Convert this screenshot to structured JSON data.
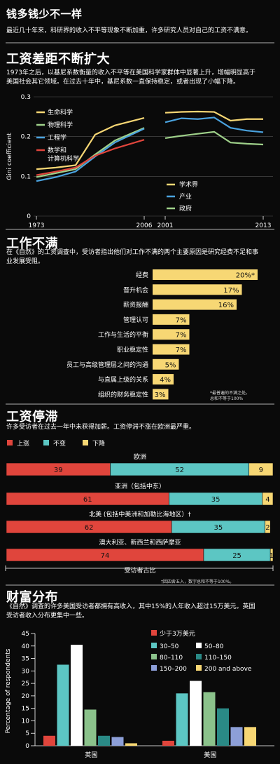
{
  "header": {
    "title": "钱多钱少不一样",
    "subtitle": "最近几十年来，科研界的收入不平等现象不断加重，许多研究人员对自己的工资不满意。"
  },
  "gini": {
    "title": "工资差距不断扩大",
    "desc_line1": "1973年之后，以基尼系数衡量的收入不平等在美国科学家群体中显著上升，增幅明显高于",
    "desc_line2": "美国社会其它领域。在过去十年中，基尼系数一直保持稳定，或者出现了小幅下降。"
  },
  "discontent": {
    "title": "工作不满",
    "desc_line1": "在《自然》的工资调查中，受访者指出他们对工作不满的两个主要原因是研究经费不足和事",
    "desc_line2": "业发展受阻。",
    "note_line1": "*最普遍的不满之处。",
    "note_line2": "总和不等于100%"
  },
  "stagnation": {
    "title": "工资停滞",
    "desc": "许多受访者在过去一年中未获得加薪。工资停滞不涨在欧洲最严重。",
    "axis_label": "受访者占比",
    "footnote": "†因四舍五入，数字总和不等于100%。"
  },
  "wealth": {
    "title": "财富分布",
    "desc_line1": "《自然》调查的许多美国受访者都拥有高收入，其中15%的人年收入超过15万美元。英国",
    "desc_line2": "受访者收入分布更集中一些。"
  },
  "chart_data": [
    {
      "type": "line",
      "xlabel": "",
      "ylabel": "Gini coefficient",
      "x": [
        1973,
        1979,
        1985,
        1991,
        1997,
        2006
      ],
      "xticks": [
        "1973",
        "2006"
      ],
      "yticks": [
        "0",
        "0.1",
        "0.2",
        "0.3"
      ],
      "ylim": [
        0,
        0.3
      ],
      "series": [
        {
          "name": "生命科学",
          "color": "#f7d774",
          "values": [
            0.118,
            0.122,
            0.128,
            0.205,
            0.228,
            0.247
          ]
        },
        {
          "name": "物理科学",
          "color": "#9fd18a",
          "values": [
            0.098,
            0.108,
            0.118,
            0.155,
            0.19,
            0.222
          ]
        },
        {
          "name": "工程学",
          "color": "#4aa3df",
          "values": [
            0.088,
            0.098,
            0.112,
            0.15,
            0.185,
            0.22
          ]
        },
        {
          "name": "数学和计算机科学",
          "color": "#e0453c",
          "values": [
            0.103,
            0.112,
            0.122,
            0.152,
            0.17,
            0.192
          ]
        }
      ]
    },
    {
      "type": "line",
      "x": [
        2001,
        2003,
        2005,
        2007,
        2009,
        2011,
        2013
      ],
      "xticks": [
        "2001",
        "2013"
      ],
      "ylim": [
        0,
        0.3
      ],
      "series": [
        {
          "name": "学术界",
          "color": "#f7d774",
          "values": [
            0.26,
            0.262,
            0.263,
            0.262,
            0.24,
            0.244,
            0.244
          ]
        },
        {
          "name": "产业",
          "color": "#4aa3df",
          "values": [
            0.236,
            0.246,
            0.244,
            0.248,
            0.222,
            0.215,
            0.211
          ]
        },
        {
          "name": "政府",
          "color": "#9fd18a",
          "values": [
            0.196,
            0.202,
            0.207,
            0.212,
            0.185,
            0.182,
            0.18
          ]
        }
      ]
    },
    {
      "type": "bar",
      "orientation": "horizontal",
      "color": "#f7d774",
      "categories": [
        "经费",
        "晋升机会",
        "薪资报酬",
        "管理认可",
        "工作与生活的平衡",
        "职业稳定性",
        "员工与高级管理层之间的沟通",
        "与直属上级的关系",
        "组织的财务稳定性"
      ],
      "values": [
        20,
        17,
        16,
        7,
        7,
        7,
        5,
        4,
        3
      ],
      "labels": [
        "20%*",
        "17%",
        "16%",
        "7%",
        "7%",
        "7%",
        "5%",
        "4%",
        "3%"
      ]
    },
    {
      "type": "bar",
      "stacked": true,
      "orientation": "horizontal",
      "legend": [
        "上涨",
        "不变",
        "下降"
      ],
      "colors": [
        "#e0453c",
        "#5cc6c3",
        "#f7d774"
      ],
      "categories": [
        "欧洲",
        "亚洲（包括中东）",
        "北美 (包括中美洲和加勒比海地区）†",
        "澳大利亚、新西兰和西萨摩亚"
      ],
      "series": [
        {
          "name": "上涨",
          "values": [
            39,
            61,
            62,
            74
          ]
        },
        {
          "name": "不变",
          "values": [
            52,
            35,
            35,
            25
          ]
        },
        {
          "name": "下降",
          "values": [
            9,
            4,
            2,
            1
          ]
        }
      ]
    },
    {
      "type": "bar",
      "ylabel": "Percentage of respondents",
      "ylim": [
        0,
        45
      ],
      "yticks": [
        "0",
        "5",
        "10",
        "15",
        "20",
        "25",
        "30",
        "35",
        "40",
        "45"
      ],
      "categories": [
        "英国",
        "美国"
      ],
      "series": [
        {
          "name": "少于3万美元",
          "color": "#e0453c",
          "values": [
            4,
            2
          ]
        },
        {
          "name": "30–50",
          "color": "#5cc6c3",
          "values": [
            32.5,
            21
          ]
        },
        {
          "name": "50–80",
          "color": "#ffffff",
          "values": [
            40.5,
            26
          ]
        },
        {
          "name": "80–110",
          "color": "#8bc28b",
          "values": [
            14.5,
            21.5
          ]
        },
        {
          "name": "110–150",
          "color": "#2a8a86",
          "values": [
            4,
            15
          ]
        },
        {
          "name": "150–200",
          "color": "#8d9fd8",
          "values": [
            3.5,
            7.5
          ]
        },
        {
          "name": "200 and above",
          "color": "#f7d774",
          "values": [
            1,
            7.5
          ]
        }
      ]
    }
  ]
}
